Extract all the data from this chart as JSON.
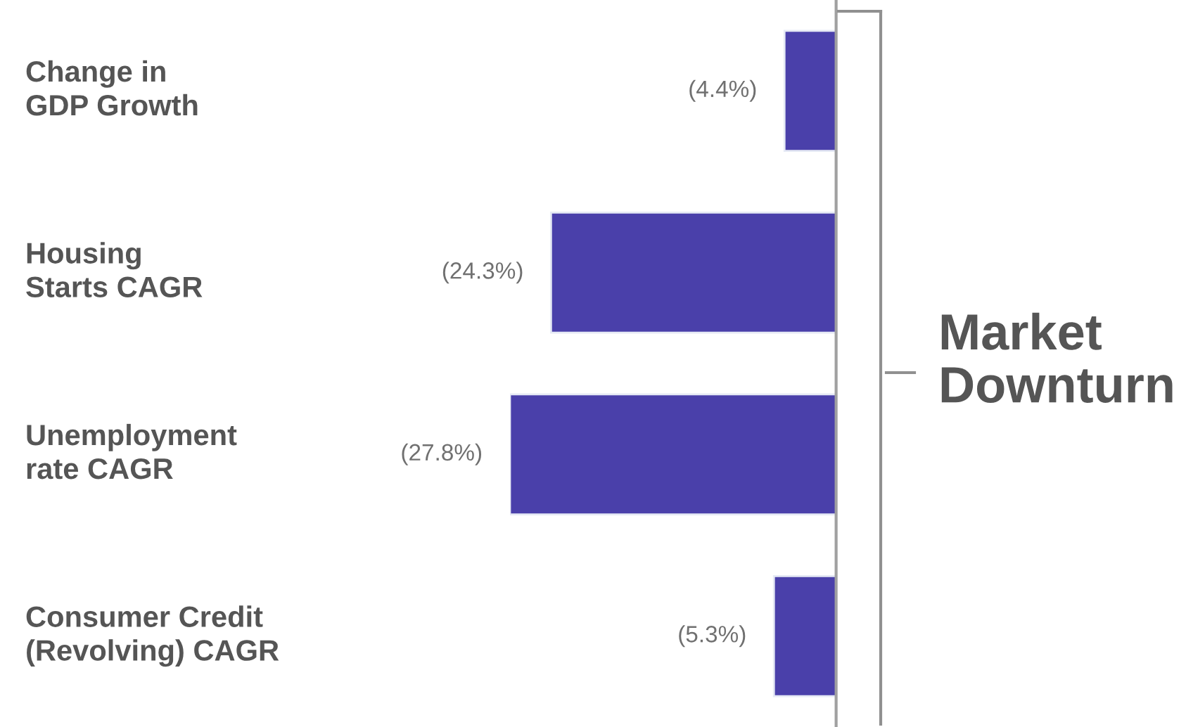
{
  "chart_data": {
    "type": "bar",
    "orientation": "horizontal",
    "categories": [
      "Change in\nGDP Growth",
      "Housing\nStarts CAGR",
      "Unemployment\nrate CAGR",
      "Consumer Credit\n(Revolving) CAGR"
    ],
    "values": [
      -4.4,
      -24.3,
      -27.8,
      -5.3
    ],
    "value_labels": [
      "(4.4%)",
      "(24.3%)",
      "(27.8%)",
      "(5.3%)"
    ],
    "color": "#4a40aa",
    "grid": false,
    "legend": false,
    "annotations": [
      "Market\nDownturn"
    ]
  }
}
